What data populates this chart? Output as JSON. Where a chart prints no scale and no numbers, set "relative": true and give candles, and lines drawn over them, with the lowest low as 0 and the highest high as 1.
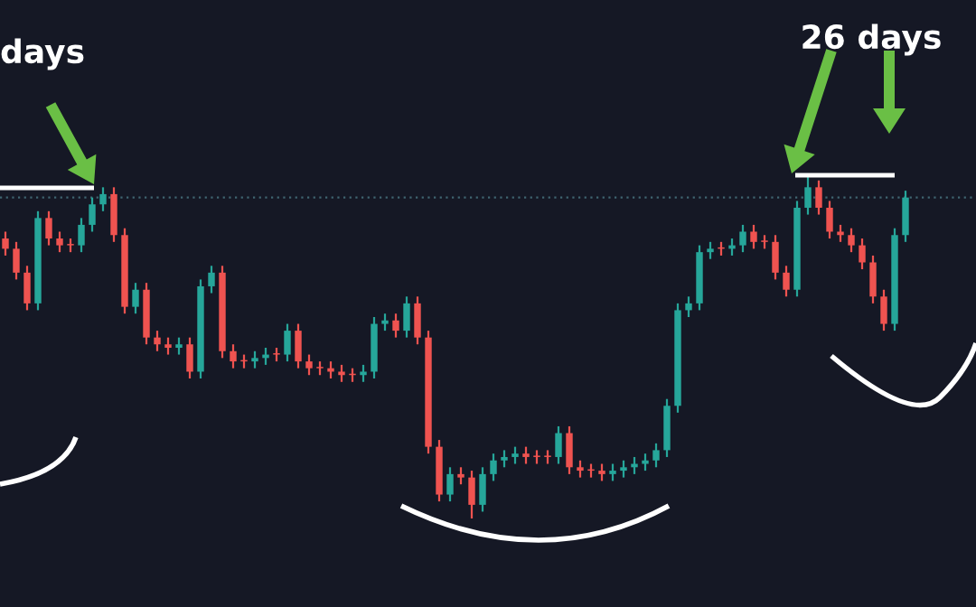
{
  "chart_data": {
    "type": "candlestick",
    "relative": true,
    "annotations": [
      "days",
      "26 days"
    ],
    "categories": [
      null,
      null,
      null,
      null,
      null,
      null,
      null,
      null,
      null,
      null,
      null,
      null,
      null,
      null,
      null,
      null,
      null,
      null,
      null,
      null,
      null,
      null,
      null,
      null,
      null,
      null,
      null,
      null,
      null,
      null,
      null,
      null,
      null,
      null,
      null,
      null,
      null,
      null,
      null,
      null,
      null,
      null,
      null,
      null,
      null,
      null,
      null,
      null,
      null,
      null,
      null,
      null,
      null,
      null,
      null,
      null,
      null,
      null,
      null,
      null,
      null,
      null,
      null,
      null,
      null,
      null,
      null,
      null,
      null,
      null,
      null,
      null,
      null,
      null,
      null,
      null,
      null,
      null,
      null,
      null,
      null,
      null,
      null,
      null
    ],
    "ohlc": [
      [
        0.82,
        0.84,
        0.77,
        0.79
      ],
      [
        0.79,
        0.81,
        0.7,
        0.72
      ],
      [
        0.72,
        0.74,
        0.61,
        0.63
      ],
      [
        0.63,
        0.9,
        0.61,
        0.88
      ],
      [
        0.88,
        0.9,
        0.8,
        0.82
      ],
      [
        0.82,
        0.84,
        0.78,
        0.8
      ],
      [
        0.8,
        0.82,
        0.78,
        0.8
      ],
      [
        0.8,
        0.88,
        0.78,
        0.86
      ],
      [
        0.86,
        0.94,
        0.84,
        0.92
      ],
      [
        0.92,
        0.97,
        0.9,
        0.95
      ],
      [
        0.95,
        0.97,
        0.81,
        0.83
      ],
      [
        0.83,
        0.85,
        0.6,
        0.62
      ],
      [
        0.62,
        0.69,
        0.6,
        0.67
      ],
      [
        0.67,
        0.69,
        0.51,
        0.53
      ],
      [
        0.53,
        0.55,
        0.49,
        0.51
      ],
      [
        0.51,
        0.53,
        0.48,
        0.5
      ],
      [
        0.5,
        0.53,
        0.48,
        0.51
      ],
      [
        0.51,
        0.53,
        0.41,
        0.43
      ],
      [
        0.43,
        0.7,
        0.41,
        0.68
      ],
      [
        0.68,
        0.74,
        0.66,
        0.72
      ],
      [
        0.72,
        0.74,
        0.47,
        0.49
      ],
      [
        0.49,
        0.51,
        0.44,
        0.46
      ],
      [
        0.46,
        0.48,
        0.44,
        0.46
      ],
      [
        0.46,
        0.49,
        0.44,
        0.47
      ],
      [
        0.47,
        0.5,
        0.45,
        0.48
      ],
      [
        0.48,
        0.5,
        0.46,
        0.48
      ],
      [
        0.48,
        0.57,
        0.46,
        0.55
      ],
      [
        0.55,
        0.57,
        0.44,
        0.46
      ],
      [
        0.46,
        0.48,
        0.42,
        0.44
      ],
      [
        0.44,
        0.46,
        0.42,
        0.44
      ],
      [
        0.44,
        0.46,
        0.41,
        0.43
      ],
      [
        0.43,
        0.45,
        0.4,
        0.42
      ],
      [
        0.42,
        0.44,
        0.4,
        0.42
      ],
      [
        0.42,
        0.45,
        0.4,
        0.43
      ],
      [
        0.43,
        0.59,
        0.41,
        0.57
      ],
      [
        0.57,
        0.6,
        0.55,
        0.58
      ],
      [
        0.58,
        0.6,
        0.53,
        0.55
      ],
      [
        0.55,
        0.65,
        0.53,
        0.63
      ],
      [
        0.63,
        0.65,
        0.51,
        0.53
      ],
      [
        0.53,
        0.55,
        0.19,
        0.21
      ],
      [
        0.21,
        0.23,
        0.05,
        0.07
      ],
      [
        0.07,
        0.15,
        0.05,
        0.13
      ],
      [
        0.13,
        0.15,
        0.1,
        0.12
      ],
      [
        0.12,
        0.14,
        0,
        0.04
      ],
      [
        0.04,
        0.15,
        0.02,
        0.13
      ],
      [
        0.13,
        0.19,
        0.11,
        0.17
      ],
      [
        0.17,
        0.2,
        0.15,
        0.18
      ],
      [
        0.18,
        0.21,
        0.16,
        0.19
      ],
      [
        0.19,
        0.21,
        0.16,
        0.18
      ],
      [
        0.18,
        0.2,
        0.16,
        0.18
      ],
      [
        0.18,
        0.2,
        0.16,
        0.18
      ],
      [
        0.18,
        0.27,
        0.16,
        0.25
      ],
      [
        0.25,
        0.27,
        0.13,
        0.15
      ],
      [
        0.15,
        0.17,
        0.12,
        0.14
      ],
      [
        0.14,
        0.16,
        0.12,
        0.14
      ],
      [
        0.14,
        0.16,
        0.11,
        0.13
      ],
      [
        0.13,
        0.16,
        0.11,
        0.14
      ],
      [
        0.14,
        0.17,
        0.12,
        0.15
      ],
      [
        0.15,
        0.18,
        0.13,
        0.16
      ],
      [
        0.16,
        0.19,
        0.14,
        0.17
      ],
      [
        0.17,
        0.22,
        0.15,
        0.2
      ],
      [
        0.2,
        0.35,
        0.18,
        0.33
      ],
      [
        0.33,
        0.63,
        0.31,
        0.61
      ],
      [
        0.61,
        0.65,
        0.59,
        0.63
      ],
      [
        0.63,
        0.8,
        0.61,
        0.78
      ],
      [
        0.78,
        0.81,
        0.76,
        0.79
      ],
      [
        0.79,
        0.81,
        0.77,
        0.79
      ],
      [
        0.79,
        0.82,
        0.77,
        0.8
      ],
      [
        0.8,
        0.86,
        0.78,
        0.84
      ],
      [
        0.84,
        0.86,
        0.79,
        0.81
      ],
      [
        0.81,
        0.83,
        0.79,
        0.81
      ],
      [
        0.81,
        0.83,
        0.7,
        0.72
      ],
      [
        0.72,
        0.74,
        0.65,
        0.67
      ],
      [
        0.67,
        0.93,
        0.65,
        0.91
      ],
      [
        0.91,
        1,
        0.89,
        0.97
      ],
      [
        0.97,
        0.99,
        0.89,
        0.91
      ],
      [
        0.91,
        0.93,
        0.82,
        0.84
      ],
      [
        0.84,
        0.86,
        0.81,
        0.83
      ],
      [
        0.83,
        0.85,
        0.78,
        0.8
      ],
      [
        0.8,
        0.82,
        0.73,
        0.75
      ],
      [
        0.75,
        0.77,
        0.63,
        0.65
      ],
      [
        0.65,
        0.67,
        0.55,
        0.57
      ],
      [
        0.57,
        0.85,
        0.55,
        0.83
      ],
      [
        0.83,
        0.96,
        0.81,
        0.94
      ]
    ],
    "colors": [
      "#ef5350",
      "#ef5350",
      "#ef5350",
      "#26a69a",
      "#ef5350",
      "#ef5350",
      "#ef5350",
      "#26a69a",
      "#26a69a",
      "#26a69a",
      "#ef5350",
      "#ef5350",
      "#26a69a",
      "#ef5350",
      "#ef5350",
      "#ef5350",
      "#26a69a",
      "#ef5350",
      "#26a69a",
      "#26a69a",
      "#ef5350",
      "#ef5350",
      "#ef5350",
      "#26a69a",
      "#26a69a",
      "#ef5350",
      "#26a69a",
      "#ef5350",
      "#ef5350",
      "#ef5350",
      "#ef5350",
      "#ef5350",
      "#ef5350",
      "#26a69a",
      "#26a69a",
      "#26a69a",
      "#ef5350",
      "#26a69a",
      "#ef5350",
      "#ef5350",
      "#ef5350",
      "#26a69a",
      "#ef5350",
      "#ef5350",
      "#26a69a",
      "#26a69a",
      "#26a69a",
      "#26a69a",
      "#ef5350",
      "#ef5350",
      "#ef5350",
      "#26a69a",
      "#ef5350",
      "#ef5350",
      "#ef5350",
      "#ef5350",
      "#26a69a",
      "#26a69a",
      "#26a69a",
      "#26a69a",
      "#26a69a",
      "#26a69a",
      "#26a69a",
      "#26a69a",
      "#26a69a",
      "#26a69a",
      "#ef5350",
      "#26a69a",
      "#26a69a",
      "#ef5350",
      "#ef5350",
      "#ef5350",
      "#ef5350",
      "#26a69a",
      "#26a69a",
      "#ef5350",
      "#ef5350",
      "#ef5350",
      "#ef5350",
      "#ef5350",
      "#ef5350",
      "#ef5350",
      "#26a69a",
      "#26a69a"
    ],
    "ref_lines": [
      {
        "axis": "y",
        "value": 0.94,
        "label": null,
        "color": "#3f6470",
        "line_style": "dotted"
      }
    ]
  }
}
